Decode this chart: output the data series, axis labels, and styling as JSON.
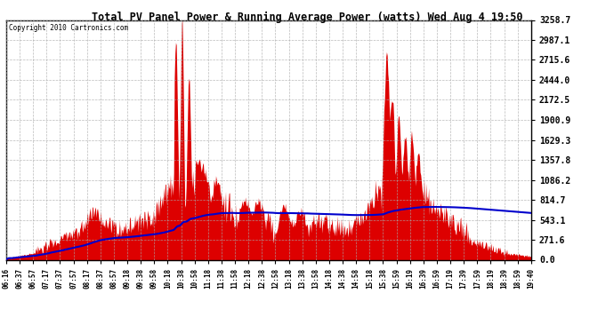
{
  "title": "Total PV Panel Power & Running Average Power (watts) Wed Aug 4 19:50",
  "copyright": "Copyright 2010 Cartronics.com",
  "background_color": "#ffffff",
  "plot_bg_color": "#ffffff",
  "grid_color": "#aaaaaa",
  "bar_color": "#dd0000",
  "line_color": "#0000cc",
  "yticks": [
    0.0,
    271.6,
    543.1,
    814.7,
    1086.2,
    1357.8,
    1629.3,
    1900.9,
    2172.5,
    2444.0,
    2715.6,
    2987.1,
    3258.7
  ],
  "ymax": 3258.7,
  "xtick_labels": [
    "06:16",
    "06:37",
    "06:57",
    "07:17",
    "07:37",
    "07:57",
    "08:17",
    "08:37",
    "08:57",
    "09:18",
    "09:38",
    "09:58",
    "10:18",
    "10:38",
    "10:58",
    "11:18",
    "11:38",
    "11:58",
    "12:18",
    "12:38",
    "12:58",
    "13:18",
    "13:38",
    "13:58",
    "14:18",
    "14:38",
    "14:58",
    "15:18",
    "15:38",
    "15:59",
    "16:19",
    "16:39",
    "16:59",
    "17:19",
    "17:39",
    "17:59",
    "18:19",
    "18:39",
    "18:59",
    "19:40"
  ],
  "num_points": 800
}
